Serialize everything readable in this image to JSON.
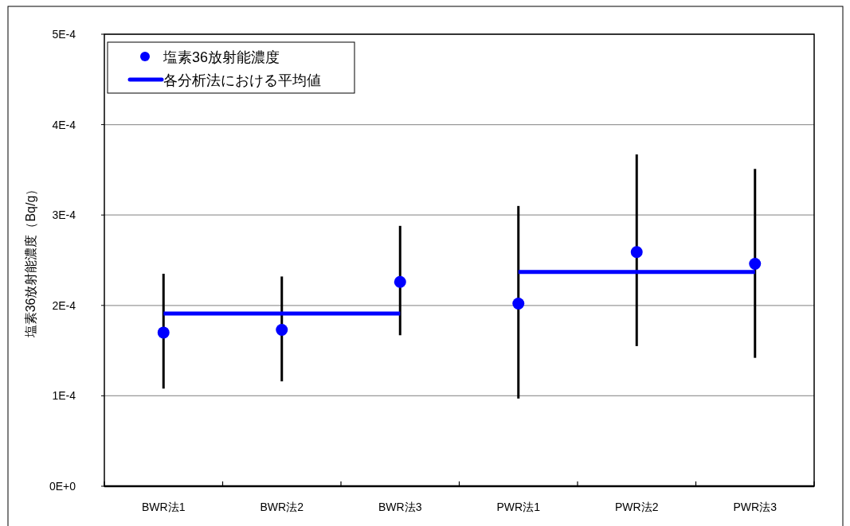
{
  "chart_data": {
    "type": "scatter",
    "ylabel": "塩素36放射能濃度（Bq/g）",
    "categories": [
      "BWR法1",
      "BWR法2",
      "BWR法3",
      "PWR法1",
      "PWR法2",
      "PWR法3"
    ],
    "ylim": [
      0,
      0.0005
    ],
    "yticks": [
      {
        "value": 0,
        "label": "0E+0"
      },
      {
        "value": 0.0001,
        "label": "1E-4"
      },
      {
        "value": 0.0002,
        "label": "2E-4"
      },
      {
        "value": 0.0003,
        "label": "3E-4"
      },
      {
        "value": 0.0004,
        "label": "4E-4"
      },
      {
        "value": 0.0005,
        "label": "5E-4"
      }
    ],
    "grid": "y",
    "legend": "top left",
    "series": [
      {
        "name": "塩素36放射能濃度",
        "type": "scatter",
        "marker": "circle",
        "color": "#0000ff",
        "values": [
          0.00017,
          0.000173,
          0.000226,
          0.000202,
          0.000259,
          0.000246
        ],
        "errors": [
          [
            0.000108,
            0.000235
          ],
          [
            0.000116,
            0.000232
          ],
          [
            0.000167,
            0.000288
          ],
          [
            9.7e-05,
            0.00031
          ],
          [
            0.000155,
            0.000367
          ],
          [
            0.000142,
            0.000351
          ]
        ]
      },
      {
        "name": "各分析法における平均値",
        "type": "line",
        "marker": "none",
        "color": "#0000ff",
        "values": [
          0.000191,
          0.000191,
          0.000191,
          null,
          null,
          null
        ]
      },
      {
        "type": "line",
        "marker": "none",
        "color": "#0000ff",
        "values": [
          null,
          null,
          null,
          0.000237,
          0.000237,
          0.000237
        ]
      }
    ]
  }
}
